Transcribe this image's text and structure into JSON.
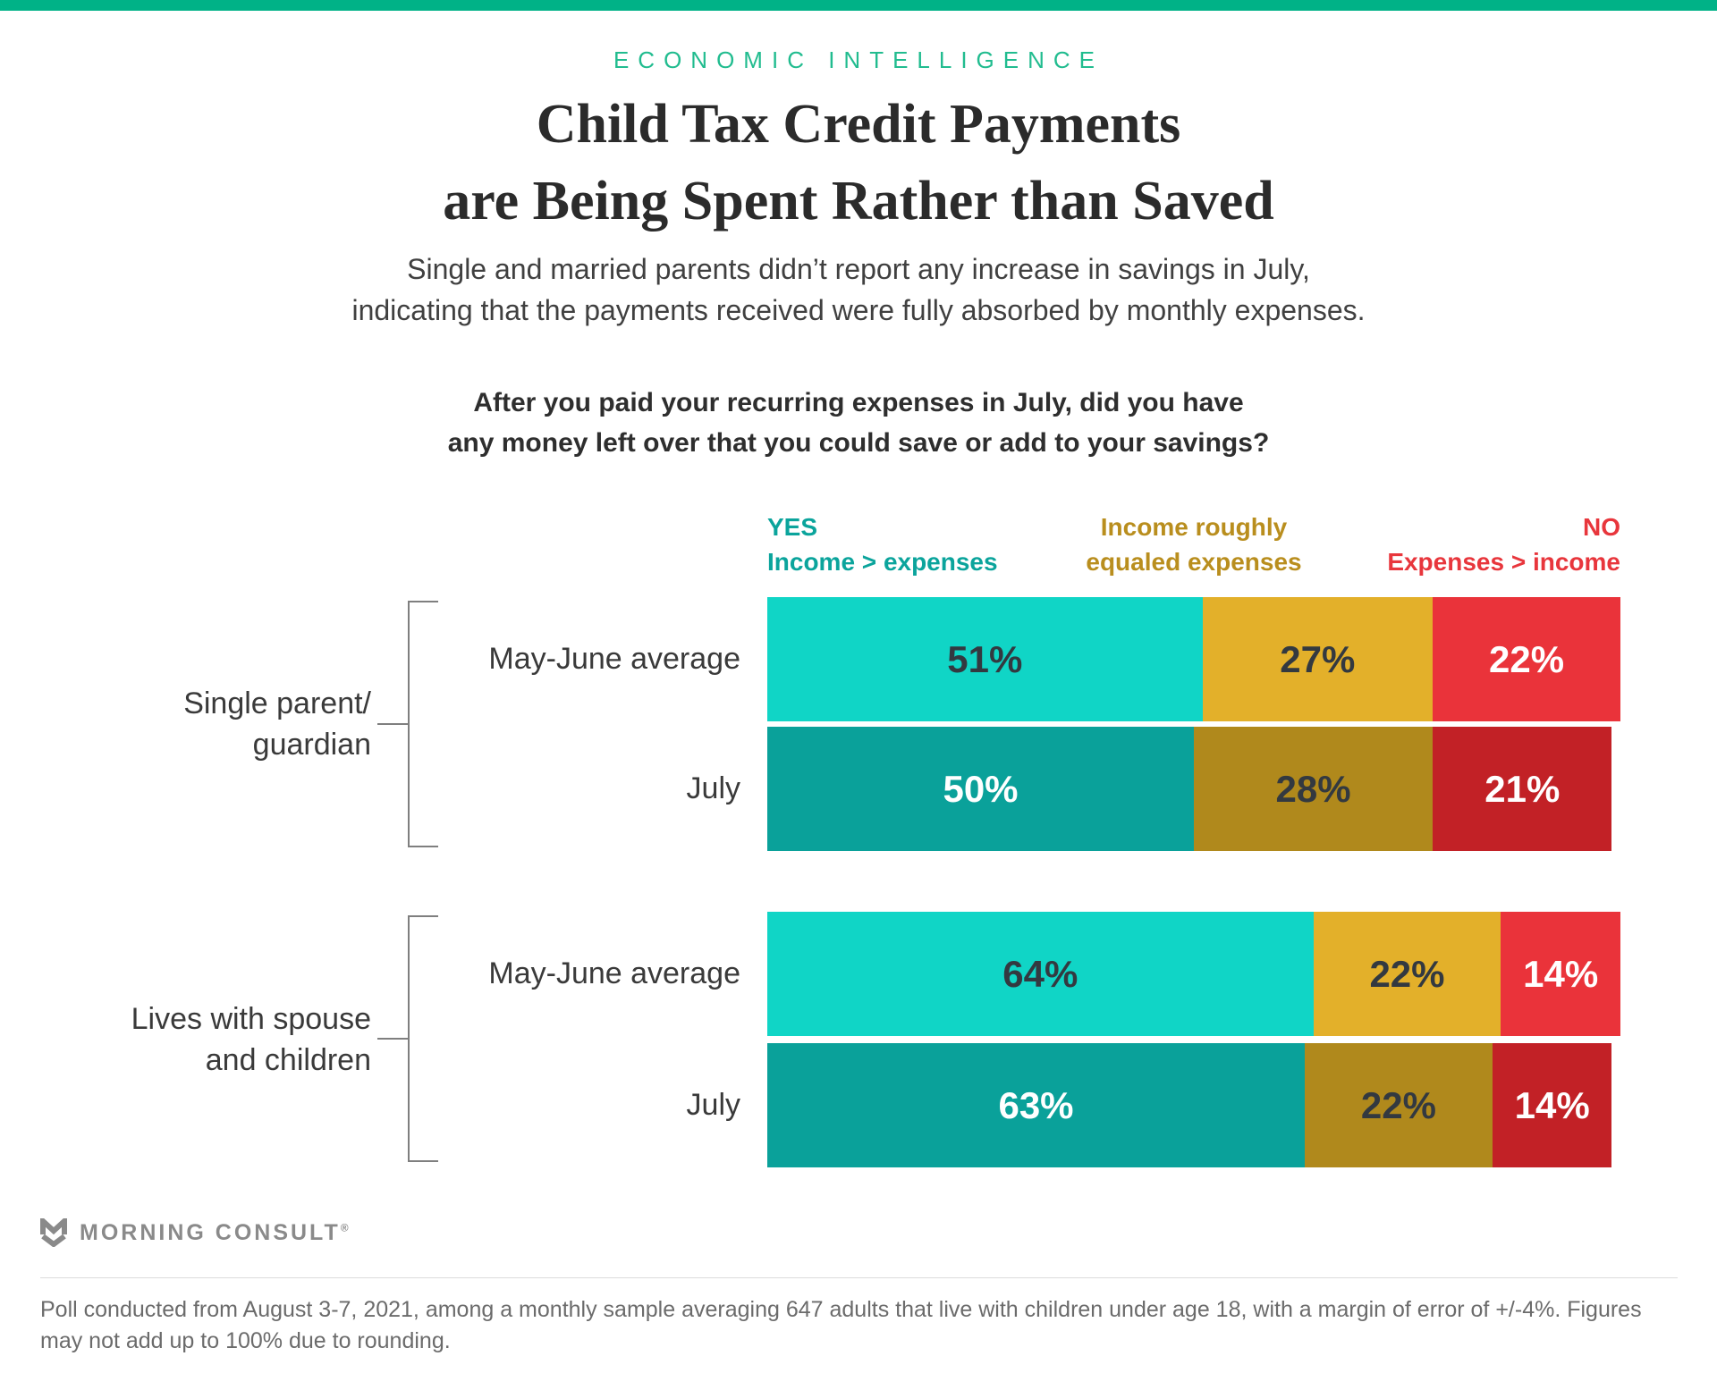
{
  "theme": {
    "accent_bar_color": "#00B287",
    "eyebrow_color": "#21BC8F"
  },
  "eyebrow": "ECONOMIC INTELLIGENCE",
  "title_line1": "Child Tax Credit Payments",
  "title_line2": "are Being Spent Rather than Saved",
  "subtitle_line1": "Single and married parents didn’t report any increase in savings in July,",
  "subtitle_line2": "indicating that the payments received were fully absorbed by monthly expenses.",
  "question_line1": "After you paid your recurring expenses in July, did you have",
  "question_line2": "any money left over that you could save or add to your savings?",
  "chart_data": {
    "type": "bar",
    "subtype": "horizontal-stacked-100pct",
    "unit": "%",
    "legend_position": "top",
    "legend": [
      {
        "line1": "YES",
        "line2": "Income > expenses",
        "color": "#0BA49C",
        "align": "left"
      },
      {
        "line1": "Income roughly",
        "line2": "equaled expenses",
        "color": "#B98E1E",
        "align": "center"
      },
      {
        "line1": "NO",
        "line2": "Expenses > income",
        "color": "#E8363C",
        "align": "right"
      }
    ],
    "groups": [
      {
        "label_line1": "Single parent/",
        "label_line2": "guardian",
        "rows": [
          {
            "label": "May-June average",
            "segments": [
              {
                "value": 51,
                "label": "51%",
                "color": "#10D5C6",
                "text": "#333940"
              },
              {
                "value": 27,
                "label": "27%",
                "color": "#E3B02A",
                "text": "#333940"
              },
              {
                "value": 22,
                "label": "22%",
                "color": "#EA333A",
                "text": "#FFFFFF"
              }
            ]
          },
          {
            "label": "July",
            "segments": [
              {
                "value": 50,
                "label": "50%",
                "color": "#0AA19A",
                "text": "#FFFFFF"
              },
              {
                "value": 28,
                "label": "28%",
                "color": "#B0891C",
                "text": "#333940"
              },
              {
                "value": 21,
                "label": "21%",
                "color": "#C22126",
                "text": "#FFFFFF"
              }
            ]
          }
        ]
      },
      {
        "label_line1": "Lives with spouse",
        "label_line2": "and children",
        "rows": [
          {
            "label": "May-June average",
            "segments": [
              {
                "value": 64,
                "label": "64%",
                "color": "#10D5C6",
                "text": "#333940"
              },
              {
                "value": 22,
                "label": "22%",
                "color": "#E3B02A",
                "text": "#333940"
              },
              {
                "value": 14,
                "label": "14%",
                "color": "#EA333A",
                "text": "#FFFFFF"
              }
            ]
          },
          {
            "label": "July",
            "segments": [
              {
                "value": 63,
                "label": "63%",
                "color": "#0AA19A",
                "text": "#FFFFFF"
              },
              {
                "value": 22,
                "label": "22%",
                "color": "#B0891C",
                "text": "#333940"
              },
              {
                "value": 14,
                "label": "14%",
                "color": "#C22126",
                "text": "#FFFFFF"
              }
            ]
          }
        ]
      }
    ]
  },
  "footer": {
    "brand": "MORNING CONSULT",
    "registered": "®",
    "footnote": "Poll conducted from August 3-7, 2021, among a monthly sample averaging 647 adults that live with children under age 18, with a margin of error of +/-4%. Figures may not add up to 100% due to rounding."
  }
}
